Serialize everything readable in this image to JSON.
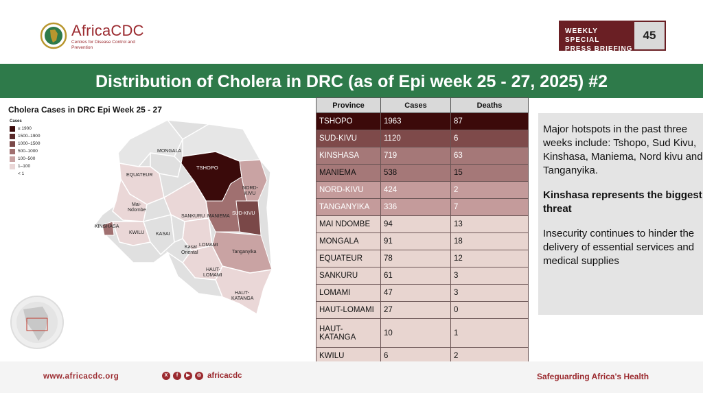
{
  "header": {
    "logo_text": "AfricaCDC",
    "logo_subtitle": "Centres for Disease Control and Prevention",
    "briefing_label_line1": "WEEKLY SPECIAL",
    "briefing_label_line2": "PRESS BRIEFING",
    "briefing_number": "45"
  },
  "slide_title": "Distribution of Cholera in DRC (as of Epi week 25 - 27, 2025) #2",
  "map": {
    "title": "Cholera Cases in DRC Epi Week 25 - 27",
    "legend_title": "Cases",
    "legend": [
      {
        "label": "≥ 1900",
        "color": "#3a0a0a"
      },
      {
        "label": "1500–1900",
        "color": "#5a2a2a"
      },
      {
        "label": "1000–1500",
        "color": "#7a4848"
      },
      {
        "label": "500–1000",
        "color": "#a07070"
      },
      {
        "label": "100–500",
        "color": "#c9a3a3"
      },
      {
        "label": "1–100",
        "color": "#ead7d7"
      },
      {
        "label": "< 1",
        "color": "#ffffff"
      }
    ],
    "labels": {
      "tshopo": "TSHOPO",
      "mongala": "MONGALA",
      "equateur": "EQUATEUR",
      "nord_kivu_1": "NORD-",
      "nord_kivu_2": "KIVU",
      "mai_ndombe_1": "Mai-",
      "mai_ndombe_2": "Ndombe",
      "sankuru": "SANKURU",
      "maniema": "MANIEMA",
      "sud_kivu": "SUD-KIVU",
      "kinshasa": "KINSHASA",
      "kwilu": "KWILU",
      "kasai": "KASAI",
      "lomami": "LOMAMI",
      "kasai_oriental_1": "Kasaï",
      "kasai_oriental_2": "Oriental",
      "tanganyika": "Tanganyika",
      "haut_lomami_1": "HAUT-",
      "haut_lomami_2": "LOMAMI",
      "haut_katanga_1": "HAUT-",
      "haut_katanga_2": "KATANGA"
    }
  },
  "table": {
    "headers": [
      "Province",
      "Cases",
      "Deaths"
    ],
    "rows": [
      {
        "province": "TSHOPO",
        "cases": "1963",
        "deaths": "87",
        "bg": "#3c0a0a",
        "fg": "#ffffff"
      },
      {
        "province": "SUD-KIVU",
        "cases": "1120",
        "deaths": "6",
        "bg": "#7e4a4a",
        "fg": "#ffffff"
      },
      {
        "province": "KINSHASA",
        "cases": "719",
        "deaths": "63",
        "bg": "#a57878",
        "fg": "#ffffff"
      },
      {
        "province": "MANIEMA",
        "cases": "538",
        "deaths": "15",
        "bg": "#a57878",
        "fg": "#111111"
      },
      {
        "province": "NORD-KIVU",
        "cases": "424",
        "deaths": "2",
        "bg": "#c49b9b",
        "fg": "#ffffff"
      },
      {
        "province": "TANGANYIKA",
        "cases": "336",
        "deaths": "7",
        "bg": "#c49b9b",
        "fg": "#ffffff"
      },
      {
        "province": "MAI NDOMBE",
        "cases": "94",
        "deaths": "13",
        "bg": "#e8d5d0",
        "fg": "#111111"
      },
      {
        "province": "MONGALA",
        "cases": "91",
        "deaths": "18",
        "bg": "#e8d5d0",
        "fg": "#111111"
      },
      {
        "province": "EQUATEUR",
        "cases": "78",
        "deaths": "12",
        "bg": "#e8d5d0",
        "fg": "#111111"
      },
      {
        "province": "SANKURU",
        "cases": "61",
        "deaths": "3",
        "bg": "#e8d5d0",
        "fg": "#111111"
      },
      {
        "province": "LOMAMI",
        "cases": "47",
        "deaths": "3",
        "bg": "#e8d5d0",
        "fg": "#111111"
      },
      {
        "province": "HAUT-LOMAMI",
        "cases": "27",
        "deaths": "0",
        "bg": "#e8d5d0",
        "fg": "#111111"
      },
      {
        "province": "HAUT-\nKATANGA",
        "cases": "10",
        "deaths": "1",
        "bg": "#e8d5d0",
        "fg": "#111111"
      },
      {
        "province": "KWILU",
        "cases": "6",
        "deaths": "2",
        "bg": "#e8d5d0",
        "fg": "#111111"
      }
    ]
  },
  "textbox": {
    "p1": "Major hotspots in the past three weeks include: Tshopo, Sud Kivu, Kinshasa, Maniema, Nord kivu and Tanganyika.",
    "p2": "Kinshasa represents the biggest threat",
    "p3": "Insecurity continues to hinder the delivery of essential services and medical supplies"
  },
  "footer": {
    "url": "www.africacdc.org",
    "social_icons": [
      "x-icon",
      "facebook-icon",
      "youtube-icon",
      "instagram-icon"
    ],
    "handle": "africacdc",
    "tagline": "Safeguarding Africa's Health"
  }
}
